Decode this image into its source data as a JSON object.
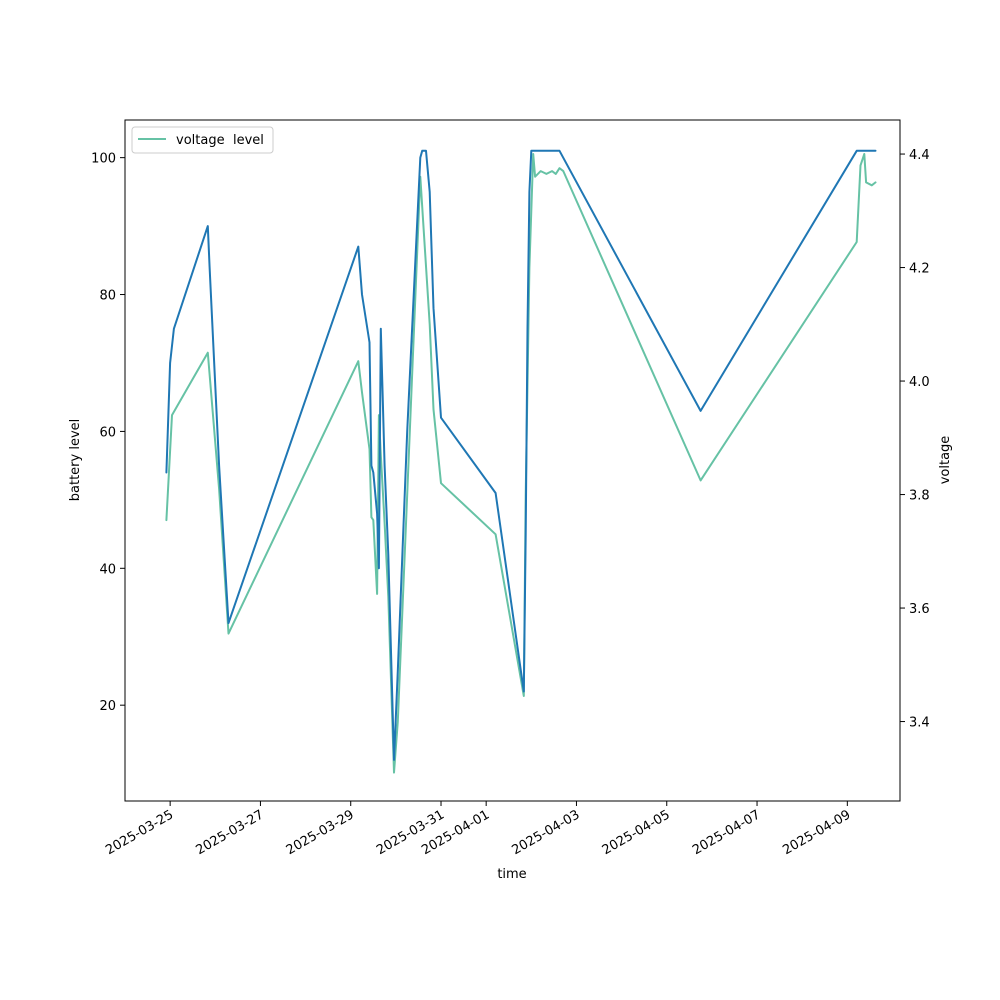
{
  "chart_data": {
    "type": "line",
    "title": "",
    "xlabel": "time",
    "ylabel_left": "battery level",
    "ylabel_right": "voltage",
    "x_ticks": [
      "2025-03-25",
      "2025-03-27",
      "2025-03-29",
      "2025-03-31",
      "2025-04-01",
      "2025-04-03",
      "2025-04-05",
      "2025-04-07",
      "2025-04-09"
    ],
    "y_ticks_left": [
      20,
      40,
      60,
      80,
      100
    ],
    "y_ticks_right": [
      3.4,
      3.6,
      3.8,
      4.0,
      4.2,
      4.4
    ],
    "xlim": [
      "2025-03-24T00:00",
      "2025-04-10T04:00"
    ],
    "ylim_left": [
      6,
      105.5
    ],
    "ylim_right": [
      3.26,
      4.46
    ],
    "grid": false,
    "legend": {
      "placement": "top-left",
      "entries": [
        "voltage",
        "level"
      ]
    },
    "colors": {
      "voltage": "#66c2a5",
      "level": "#1f77b4"
    },
    "series": [
      {
        "name": "level",
        "axis": "left",
        "points": [
          [
            "2025-03-24T22:00",
            54
          ],
          [
            "2025-03-25T00:00",
            70
          ],
          [
            "2025-03-25T02:00",
            75
          ],
          [
            "2025-03-25T20:00",
            90
          ],
          [
            "2025-03-25T21:00",
            84
          ],
          [
            "2025-03-26T02:00",
            55
          ],
          [
            "2025-03-26T07:00",
            32
          ],
          [
            "2025-03-29T04:00",
            87
          ],
          [
            "2025-03-29T06:00",
            80
          ],
          [
            "2025-03-29T10:00",
            73
          ],
          [
            "2025-03-29T11:00",
            55
          ],
          [
            "2025-03-29T12:00",
            54
          ],
          [
            "2025-03-29T14:00",
            48
          ],
          [
            "2025-03-29T15:00",
            40
          ],
          [
            "2025-03-29T16:00",
            75
          ],
          [
            "2025-03-29T18:00",
            55
          ],
          [
            "2025-03-29T20:00",
            42
          ],
          [
            "2025-03-29T23:00",
            12
          ],
          [
            "2025-03-30T01:00",
            25
          ],
          [
            "2025-03-30T06:00",
            60
          ],
          [
            "2025-03-30T13:00",
            100
          ],
          [
            "2025-03-30T14:00",
            101
          ],
          [
            "2025-03-30T16:00",
            101
          ],
          [
            "2025-03-30T18:00",
            95
          ],
          [
            "2025-03-30T20:00",
            78
          ],
          [
            "2025-03-31T00:00",
            62
          ],
          [
            "2025-04-01T05:00",
            51
          ],
          [
            "2025-04-01T20:00",
            22
          ],
          [
            "2025-04-01T21:00",
            45
          ],
          [
            "2025-04-01T22:00",
            75
          ],
          [
            "2025-04-01T23:00",
            95
          ],
          [
            "2025-04-02T00:00",
            101
          ],
          [
            "2025-04-02T15:00",
            101
          ],
          [
            "2025-04-05T18:00",
            63
          ],
          [
            "2025-04-09T05:00",
            101
          ],
          [
            "2025-04-09T15:00",
            101
          ]
        ]
      },
      {
        "name": "voltage",
        "axis": "right",
        "points": [
          [
            "2025-03-24T22:00",
            3.755
          ],
          [
            "2025-03-25T01:00",
            3.94
          ],
          [
            "2025-03-25T20:00",
            4.05
          ],
          [
            "2025-03-26T02:00",
            3.81
          ],
          [
            "2025-03-26T07:00",
            3.555
          ],
          [
            "2025-03-29T04:00",
            4.035
          ],
          [
            "2025-03-29T06:00",
            3.98
          ],
          [
            "2025-03-29T10:00",
            3.88
          ],
          [
            "2025-03-29T11:00",
            3.76
          ],
          [
            "2025-03-29T12:00",
            3.755
          ],
          [
            "2025-03-29T14:00",
            3.625
          ],
          [
            "2025-03-29T15:00",
            3.94
          ],
          [
            "2025-03-29T16:00",
            3.87
          ],
          [
            "2025-03-29T18:00",
            3.75
          ],
          [
            "2025-03-29T20:00",
            3.62
          ],
          [
            "2025-03-29T23:00",
            3.31
          ],
          [
            "2025-03-30T01:00",
            3.4
          ],
          [
            "2025-03-30T06:00",
            3.8
          ],
          [
            "2025-03-30T13:00",
            4.36
          ],
          [
            "2025-03-30T18:00",
            4.1
          ],
          [
            "2025-03-30T20:00",
            3.95
          ],
          [
            "2025-03-31T00:00",
            3.82
          ],
          [
            "2025-04-01T05:00",
            3.73
          ],
          [
            "2025-04-01T20:00",
            3.445
          ],
          [
            "2025-04-01T21:00",
            3.8
          ],
          [
            "2025-04-01T23:00",
            4.2
          ],
          [
            "2025-04-02T01:00",
            4.4
          ],
          [
            "2025-04-02T02:00",
            4.36
          ],
          [
            "2025-04-02T05:00",
            4.37
          ],
          [
            "2025-04-02T08:00",
            4.365
          ],
          [
            "2025-04-02T11:00",
            4.37
          ],
          [
            "2025-04-02T13:00",
            4.365
          ],
          [
            "2025-04-02T15:00",
            4.375
          ],
          [
            "2025-04-02T17:00",
            4.37
          ],
          [
            "2025-04-05T18:00",
            3.825
          ],
          [
            "2025-04-09T05:00",
            4.245
          ],
          [
            "2025-04-09T07:00",
            4.38
          ],
          [
            "2025-04-09T09:00",
            4.4
          ],
          [
            "2025-04-09T10:00",
            4.35
          ],
          [
            "2025-04-09T13:00",
            4.345
          ],
          [
            "2025-04-09T15:00",
            4.35
          ]
        ]
      }
    ]
  }
}
